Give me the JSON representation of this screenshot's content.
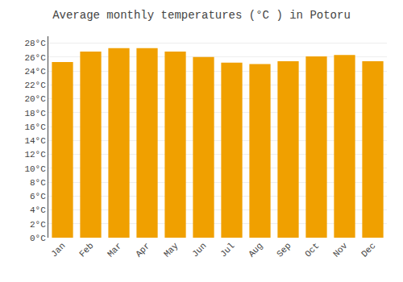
{
  "chart_data": {
    "type": "bar",
    "title": "Average monthly temperatures (°C ) in Potoru",
    "categories": [
      "Jan",
      "Feb",
      "Mar",
      "Apr",
      "May",
      "Jun",
      "Jul",
      "Aug",
      "Sep",
      "Oct",
      "Nov",
      "Dec"
    ],
    "values": [
      25.3,
      26.8,
      27.3,
      27.3,
      26.8,
      26.0,
      25.2,
      25.0,
      25.4,
      26.1,
      26.3,
      25.4
    ],
    "color": "#F0A000",
    "ylim": [
      0,
      29
    ],
    "yticks": [
      {
        "value": 0,
        "label": "0°C"
      },
      {
        "value": 2,
        "label": "2°C"
      },
      {
        "value": 4,
        "label": "4°C"
      },
      {
        "value": 6,
        "label": "6°C"
      },
      {
        "value": 8,
        "label": "8°C"
      },
      {
        "value": 10,
        "label": "10°C"
      },
      {
        "value": 12,
        "label": "12°C"
      },
      {
        "value": 14,
        "label": "14°C"
      },
      {
        "value": 16,
        "label": "16°C"
      },
      {
        "value": 18,
        "label": "18°C"
      },
      {
        "value": 20,
        "label": "20°C"
      },
      {
        "value": 22,
        "label": "22°C"
      },
      {
        "value": 24,
        "label": "24°C"
      },
      {
        "value": 26,
        "label": "26°C"
      },
      {
        "value": 28,
        "label": "28°C"
      }
    ],
    "grid": true
  }
}
